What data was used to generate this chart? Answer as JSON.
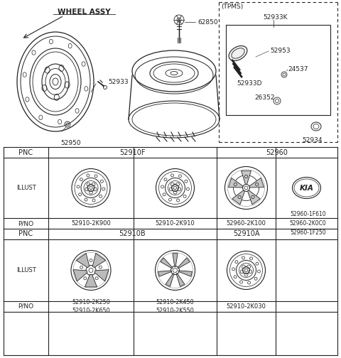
{
  "bg_color": "#ffffff",
  "line_color": "#222222",
  "text_color": "#222222",
  "top_section": {
    "wheel_assy_label": "WHEEL ASSY",
    "part_numbers_left": [
      "52933",
      "52950"
    ],
    "part_numbers_center": [
      "62850"
    ],
    "tpms_label": "(TPMS)",
    "tpms_parts": [
      "52933K",
      "52953",
      "24537",
      "52933D",
      "26352",
      "52934"
    ]
  },
  "table": {
    "row1_pnc": [
      "52910F",
      "52960"
    ],
    "row1_pno": [
      "52910-2K900",
      "52910-2K910",
      "52960-2K100",
      "52960-1F610\n52960-2K0C0\n52960-1F250"
    ],
    "row2_pnc": [
      "52910B",
      "52910A"
    ],
    "row2_pno": [
      "52910-2K250\n52910-2K650",
      "52910-2K450\n52910-2K550",
      "52910-2K030"
    ]
  }
}
